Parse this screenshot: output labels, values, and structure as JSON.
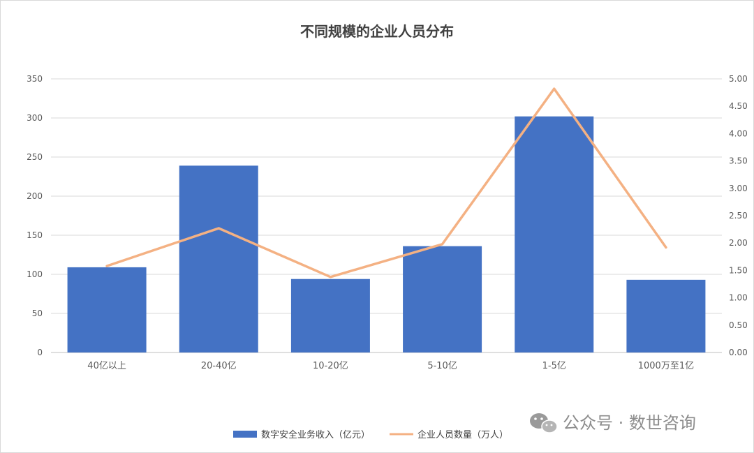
{
  "chart_data": {
    "type": "bar",
    "title": "不同规模的企业人员分布",
    "categories": [
      "40亿以上",
      "20-40亿",
      "10-20亿",
      "5-10亿",
      "1-5亿",
      "1000万至1亿"
    ],
    "series": [
      {
        "name": "数字安全业务收入（亿元）",
        "type": "bar",
        "axis": "left",
        "color": "#4472C4",
        "values": [
          109,
          239,
          94,
          136,
          302,
          93
        ]
      },
      {
        "name": "企业人员数量（万人）",
        "type": "line",
        "axis": "right",
        "color": "#F4B183",
        "values": [
          1.58,
          2.27,
          1.38,
          1.98,
          4.82,
          1.92
        ]
      }
    ],
    "y_left": {
      "min": 0,
      "max": 350,
      "ticks": [
        "0",
        "50",
        "100",
        "150",
        "200",
        "250",
        "300",
        "350"
      ]
    },
    "y_right": {
      "min": 0,
      "max": 5,
      "ticks": [
        "0.00",
        "0.50",
        "1.00",
        "1.50",
        "2.00",
        "2.50",
        "3.00",
        "3.50",
        "4.00",
        "4.50",
        "5.00"
      ]
    },
    "grid": true,
    "legend_position": "bottom"
  },
  "watermark": {
    "text": "公众号 · 数世咨询",
    "icon": "wechat-icon"
  }
}
